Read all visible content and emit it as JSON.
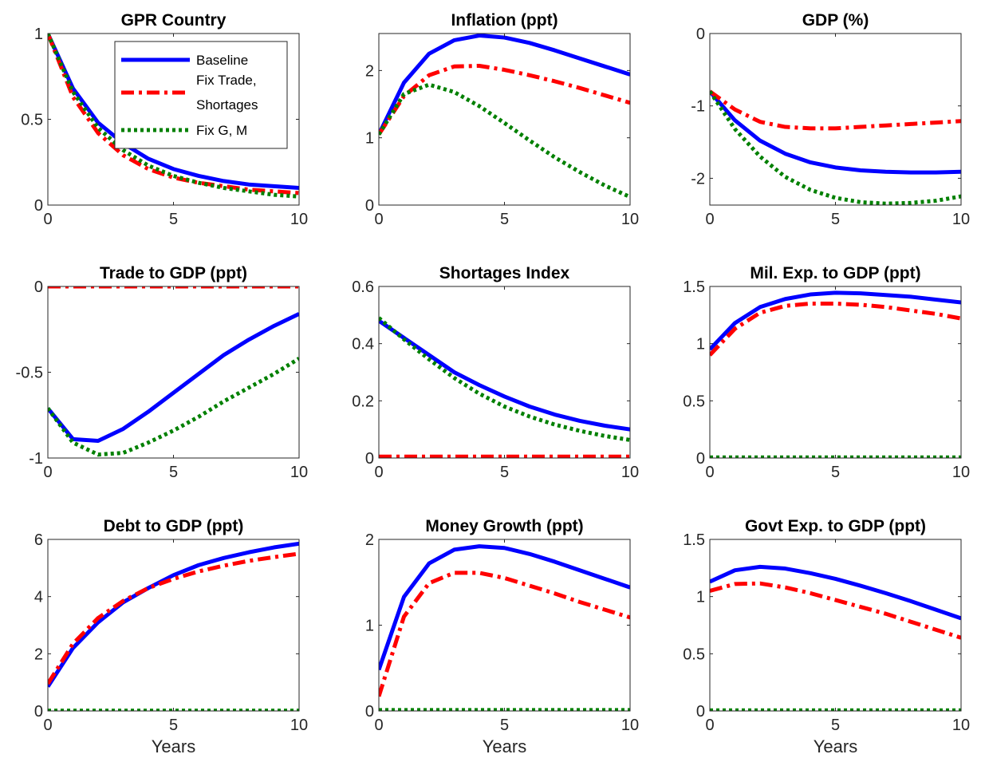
{
  "legend": {
    "entries": [
      "Baseline",
      "Fix Trade,\nShortages",
      "Fix G, M"
    ]
  },
  "series_styles": [
    {
      "color": "#0000ff",
      "dash": "solid"
    },
    {
      "color": "#ff0000",
      "dash": "dashdot"
    },
    {
      "color": "#008000",
      "dash": "dotted"
    }
  ],
  "chart_data": [
    {
      "type": "line",
      "title": "GPR Country",
      "xlabel": "",
      "x": [
        0,
        1,
        2,
        3,
        4,
        5,
        6,
        7,
        8,
        9,
        10
      ],
      "xlim": [
        0,
        10
      ],
      "ylim": [
        0,
        1
      ],
      "xticks": [
        0,
        5,
        10
      ],
      "xtick_labels": [
        "0",
        "5",
        "10"
      ],
      "yticks": [
        0,
        0.5,
        1
      ],
      "ytick_labels": [
        "0",
        "0.5",
        "1"
      ],
      "legend": "top-right",
      "series": [
        {
          "name": "Baseline",
          "values": [
            1.0,
            0.68,
            0.48,
            0.36,
            0.27,
            0.21,
            0.17,
            0.14,
            0.12,
            0.11,
            0.1
          ]
        },
        {
          "name": "Fix Trade,\nShortages",
          "values": [
            1.0,
            0.63,
            0.42,
            0.29,
            0.21,
            0.16,
            0.13,
            0.11,
            0.09,
            0.08,
            0.07
          ]
        },
        {
          "name": "Fix G, M",
          "values": [
            1.0,
            0.66,
            0.45,
            0.32,
            0.23,
            0.17,
            0.13,
            0.1,
            0.08,
            0.06,
            0.05
          ]
        }
      ]
    },
    {
      "type": "line",
      "title": "Inflation (ppt)",
      "xlabel": "",
      "x": [
        0,
        1,
        2,
        3,
        4,
        5,
        6,
        7,
        8,
        9,
        10
      ],
      "xlim": [
        0,
        10
      ],
      "ylim": [
        0,
        2.55
      ],
      "xticks": [
        0,
        5,
        10
      ],
      "xtick_labels": [
        "0",
        "5",
        "10"
      ],
      "yticks": [
        0,
        1,
        2
      ],
      "ytick_labels": [
        "0",
        "1",
        "2"
      ],
      "series": [
        {
          "name": "Baseline",
          "values": [
            1.05,
            1.82,
            2.25,
            2.45,
            2.52,
            2.49,
            2.41,
            2.3,
            2.18,
            2.06,
            1.94
          ]
        },
        {
          "name": "Fix Trade,\nShortages",
          "values": [
            1.05,
            1.62,
            1.93,
            2.06,
            2.07,
            2.01,
            1.93,
            1.84,
            1.74,
            1.63,
            1.52
          ]
        },
        {
          "name": "Fix G, M",
          "values": [
            1.05,
            1.65,
            1.79,
            1.68,
            1.47,
            1.22,
            0.96,
            0.71,
            0.49,
            0.29,
            0.12
          ]
        }
      ]
    },
    {
      "type": "line",
      "title": "GDP (%)",
      "xlabel": "",
      "x": [
        0,
        1,
        2,
        3,
        4,
        5,
        6,
        7,
        8,
        9,
        10
      ],
      "xlim": [
        0,
        10
      ],
      "ylim": [
        -2.37,
        0
      ],
      "xticks": [
        0,
        5,
        10
      ],
      "xtick_labels": [
        "0",
        "5",
        "10"
      ],
      "yticks": [
        -2,
        -1,
        0
      ],
      "ytick_labels": [
        "-2",
        "-1",
        "0"
      ],
      "series": [
        {
          "name": "Baseline",
          "values": [
            -0.8,
            -1.2,
            -1.48,
            -1.66,
            -1.78,
            -1.85,
            -1.89,
            -1.91,
            -1.92,
            -1.92,
            -1.91
          ]
        },
        {
          "name": "Fix Trade,\nShortages",
          "values": [
            -0.8,
            -1.05,
            -1.22,
            -1.29,
            -1.31,
            -1.31,
            -1.29,
            -1.27,
            -1.25,
            -1.23,
            -1.21
          ]
        },
        {
          "name": "Fix G, M",
          "values": [
            -0.8,
            -1.32,
            -1.7,
            -1.98,
            -2.16,
            -2.27,
            -2.33,
            -2.35,
            -2.34,
            -2.31,
            -2.25
          ]
        }
      ]
    },
    {
      "type": "line",
      "title": "Trade to GDP (ppt)",
      "xlabel": "",
      "x": [
        0,
        1,
        2,
        3,
        4,
        5,
        6,
        7,
        8,
        9,
        10
      ],
      "xlim": [
        0,
        10
      ],
      "ylim": [
        -1,
        0
      ],
      "xticks": [
        0,
        5,
        10
      ],
      "xtick_labels": [
        "0",
        "5",
        "10"
      ],
      "yticks": [
        -1,
        -0.5,
        0
      ],
      "ytick_labels": [
        "-1",
        "-0.5",
        "0"
      ],
      "series": [
        {
          "name": "Baseline",
          "values": [
            -0.71,
            -0.89,
            -0.9,
            -0.83,
            -0.73,
            -0.62,
            -0.51,
            -0.4,
            -0.31,
            -0.23,
            -0.16
          ]
        },
        {
          "name": "Fix Trade,\nShortages",
          "values": [
            0,
            0,
            0,
            0,
            0,
            0,
            0,
            0,
            0,
            0,
            0
          ]
        },
        {
          "name": "Fix G, M",
          "values": [
            -0.71,
            -0.91,
            -0.98,
            -0.97,
            -0.91,
            -0.84,
            -0.76,
            -0.67,
            -0.59,
            -0.51,
            -0.42
          ]
        }
      ]
    },
    {
      "type": "line",
      "title": "Shortages Index",
      "xlabel": "",
      "x": [
        0,
        1,
        2,
        3,
        4,
        5,
        6,
        7,
        8,
        9,
        10
      ],
      "xlim": [
        0,
        10
      ],
      "ylim": [
        0,
        0.6
      ],
      "xticks": [
        0,
        5,
        10
      ],
      "xtick_labels": [
        "0",
        "5",
        "10"
      ],
      "yticks": [
        0,
        0.2,
        0.4,
        0.6
      ],
      "ytick_labels": [
        "0",
        "0.2",
        "0.4",
        "0.6"
      ],
      "series": [
        {
          "name": "Baseline",
          "values": [
            0.48,
            0.42,
            0.36,
            0.3,
            0.255,
            0.215,
            0.18,
            0.152,
            0.13,
            0.113,
            0.1
          ]
        },
        {
          "name": "Fix Trade,\nShortages",
          "values": [
            0.005,
            0.005,
            0.005,
            0.005,
            0.005,
            0.005,
            0.005,
            0.005,
            0.005,
            0.005,
            0.005
          ]
        },
        {
          "name": "Fix G, M",
          "values": [
            0.49,
            0.415,
            0.345,
            0.28,
            0.225,
            0.18,
            0.145,
            0.117,
            0.095,
            0.077,
            0.063
          ]
        }
      ]
    },
    {
      "type": "line",
      "title": "Mil. Exp. to GDP (ppt)",
      "xlabel": "",
      "x": [
        0,
        1,
        2,
        3,
        4,
        5,
        6,
        7,
        8,
        9,
        10
      ],
      "xlim": [
        0,
        10
      ],
      "ylim": [
        0,
        1.5
      ],
      "xticks": [
        0,
        5,
        10
      ],
      "xtick_labels": [
        "0",
        "5",
        "10"
      ],
      "yticks": [
        0,
        0.5,
        1,
        1.5
      ],
      "ytick_labels": [
        "0",
        "0.5",
        "1",
        "1.5"
      ],
      "series": [
        {
          "name": "Baseline",
          "values": [
            0.95,
            1.18,
            1.32,
            1.39,
            1.43,
            1.445,
            1.44,
            1.425,
            1.41,
            1.385,
            1.36
          ]
        },
        {
          "name": "Fix Trade,\nShortages",
          "values": [
            0.9,
            1.13,
            1.27,
            1.33,
            1.35,
            1.35,
            1.34,
            1.32,
            1.29,
            1.26,
            1.22
          ]
        },
        {
          "name": "Fix G, M",
          "values": [
            0.005,
            0.005,
            0.005,
            0.005,
            0.005,
            0.005,
            0.005,
            0.005,
            0.005,
            0.005,
            0.005
          ]
        }
      ]
    },
    {
      "type": "line",
      "title": "Debt to GDP (ppt)",
      "xlabel": "Years",
      "x": [
        0,
        1,
        2,
        3,
        4,
        5,
        6,
        7,
        8,
        9,
        10
      ],
      "xlim": [
        0,
        10
      ],
      "ylim": [
        0,
        6
      ],
      "xticks": [
        0,
        5,
        10
      ],
      "xtick_labels": [
        "0",
        "5",
        "10"
      ],
      "yticks": [
        0,
        2,
        4,
        6
      ],
      "ytick_labels": [
        "0",
        "2",
        "4",
        "6"
      ],
      "series": [
        {
          "name": "Baseline",
          "values": [
            0.85,
            2.2,
            3.1,
            3.8,
            4.3,
            4.75,
            5.1,
            5.35,
            5.55,
            5.72,
            5.85
          ]
        },
        {
          "name": "Fix Trade,\nShortages",
          "values": [
            0.95,
            2.35,
            3.25,
            3.85,
            4.3,
            4.62,
            4.88,
            5.08,
            5.25,
            5.38,
            5.5
          ]
        },
        {
          "name": "Fix G, M",
          "values": [
            0.01,
            0.01,
            0.01,
            0.01,
            0.01,
            0.01,
            0.01,
            0.01,
            0.01,
            0.01,
            0.01
          ]
        }
      ]
    },
    {
      "type": "line",
      "title": "Money Growth (ppt)",
      "xlabel": "Years",
      "x": [
        0,
        1,
        2,
        3,
        4,
        5,
        6,
        7,
        8,
        9,
        10
      ],
      "xlim": [
        0,
        10
      ],
      "ylim": [
        0,
        2
      ],
      "xticks": [
        0,
        5,
        10
      ],
      "xtick_labels": [
        "0",
        "5",
        "10"
      ],
      "yticks": [
        0,
        1,
        2
      ],
      "ytick_labels": [
        "0",
        "1",
        "2"
      ],
      "series": [
        {
          "name": "Baseline",
          "values": [
            0.48,
            1.33,
            1.72,
            1.88,
            1.92,
            1.9,
            1.83,
            1.74,
            1.64,
            1.54,
            1.44
          ]
        },
        {
          "name": "Fix Trade,\nShortages",
          "values": [
            0.17,
            1.1,
            1.49,
            1.61,
            1.61,
            1.55,
            1.46,
            1.37,
            1.27,
            1.18,
            1.09
          ]
        },
        {
          "name": "Fix G, M",
          "values": [
            0.01,
            0.01,
            0.01,
            0.01,
            0.01,
            0.01,
            0.01,
            0.01,
            0.01,
            0.01,
            0.01
          ]
        }
      ]
    },
    {
      "type": "line",
      "title": "Govt Exp. to GDP (ppt)",
      "xlabel": "Years",
      "x": [
        0,
        1,
        2,
        3,
        4,
        5,
        6,
        7,
        8,
        9,
        10
      ],
      "xlim": [
        0,
        10
      ],
      "ylim": [
        0,
        1.5
      ],
      "xticks": [
        0,
        5,
        10
      ],
      "xtick_labels": [
        "0",
        "5",
        "10"
      ],
      "yticks": [
        0,
        0.5,
        1,
        1.5
      ],
      "ytick_labels": [
        "0",
        "0.5",
        "1",
        "1.5"
      ],
      "series": [
        {
          "name": "Baseline",
          "values": [
            1.13,
            1.23,
            1.26,
            1.245,
            1.205,
            1.155,
            1.095,
            1.03,
            0.96,
            0.885,
            0.81
          ]
        },
        {
          "name": "Fix Trade,\nShortages",
          "values": [
            1.05,
            1.11,
            1.115,
            1.08,
            1.03,
            0.97,
            0.91,
            0.85,
            0.78,
            0.71,
            0.64
          ]
        },
        {
          "name": "Fix G, M",
          "values": [
            0.005,
            0.005,
            0.005,
            0.005,
            0.005,
            0.005,
            0.005,
            0.005,
            0.005,
            0.005,
            0.005
          ]
        }
      ]
    }
  ]
}
